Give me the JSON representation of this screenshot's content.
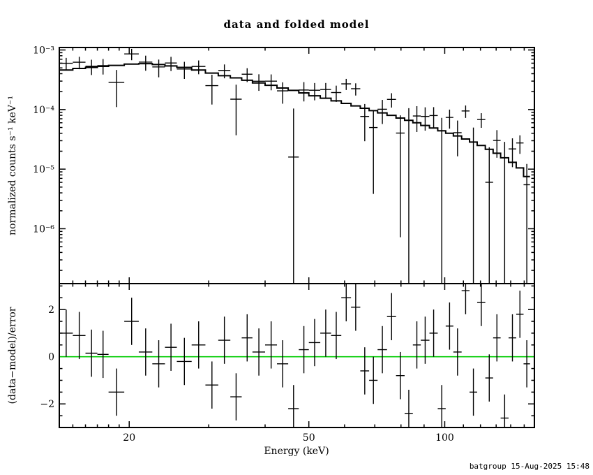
{
  "footer": "batgroup 15-Aug-2025 15:48",
  "colors": {
    "foreground": "#000000",
    "background": "#ffffff",
    "zero_line": "#00cc00",
    "footer_text": "#000080"
  },
  "chart_data": {
    "type": "line",
    "title": "data and folded model",
    "xlabel": "Energy (keV)",
    "ylabel_top": "normalized counts s⁻¹ keV⁻¹",
    "ylabel_bottom": "(data−model)/error",
    "x_scale": "log",
    "xlim": [
      14,
      158
    ],
    "xticks": [
      {
        "v": 20,
        "label": "20"
      },
      {
        "v": 50,
        "label": "50"
      },
      {
        "v": 100,
        "label": "100"
      }
    ],
    "top_panel": {
      "y_scale": "log",
      "ylim": [
        1.2e-07,
        0.0011
      ],
      "yticks": [
        {
          "v": 0.001,
          "label": "10⁻³"
        },
        {
          "v": 0.0001,
          "label": "10⁻⁴"
        },
        {
          "v": 1e-05,
          "label": "10⁻⁵"
        },
        {
          "v": 1e-06,
          "label": "10⁻⁶"
        }
      ]
    },
    "bottom_panel": {
      "y_scale": "linear",
      "ylim": [
        -3.0,
        3.1
      ],
      "yticks": [
        {
          "v": -2,
          "label": "−2"
        },
        {
          "v": 0,
          "label": "0"
        },
        {
          "v": 2,
          "label": "2"
        }
      ]
    },
    "bins_format": [
      "energy_keV",
      "half_width_keV",
      "model_counts",
      "residual_sigma",
      "relative_error"
    ],
    "bins": [
      [
        14.5,
        0.5,
        0.00046,
        1.0,
        0.3
      ],
      [
        15.5,
        0.5,
        0.00049,
        0.9,
        0.3
      ],
      [
        16.5,
        0.5,
        0.00051,
        0.15,
        0.3
      ],
      [
        17.5,
        0.5,
        0.00053,
        0.1,
        0.3
      ],
      [
        18.75,
        0.75,
        0.00055,
        -1.5,
        0.32
      ],
      [
        20.25,
        0.75,
        0.00058,
        1.5,
        0.32
      ],
      [
        21.75,
        0.75,
        0.00059,
        0.2,
        0.3
      ],
      [
        23.25,
        0.75,
        0.00057,
        -0.3,
        0.3
      ],
      [
        24.75,
        0.75,
        0.00054,
        0.4,
        0.3
      ],
      [
        26.5,
        1.0,
        0.00051,
        -0.2,
        0.3
      ],
      [
        28.5,
        1.0,
        0.00046,
        0.5,
        0.3
      ],
      [
        30.5,
        1.0,
        0.00041,
        -1.2,
        0.32
      ],
      [
        32.5,
        1.0,
        0.00037,
        0.7,
        0.32
      ],
      [
        34.5,
        1.0,
        0.00034,
        -1.7,
        0.33
      ],
      [
        36.5,
        1.0,
        0.00031,
        0.8,
        0.33
      ],
      [
        38.75,
        1.25,
        0.00028,
        0.2,
        0.33
      ],
      [
        41.25,
        1.25,
        0.000255,
        0.5,
        0.35
      ],
      [
        43.75,
        1.25,
        0.00023,
        -0.3,
        0.35
      ],
      [
        46.25,
        1.25,
        0.00021,
        -2.2,
        0.42
      ],
      [
        48.75,
        1.25,
        0.00019,
        0.3,
        0.4
      ],
      [
        51.5,
        1.5,
        0.00017,
        0.6,
        0.4
      ],
      [
        54.5,
        1.5,
        0.000155,
        1.0,
        0.4
      ],
      [
        57.5,
        1.5,
        0.00014,
        0.9,
        0.42
      ],
      [
        60.5,
        1.5,
        0.000127,
        2.5,
        0.45
      ],
      [
        63.5,
        1.5,
        0.000115,
        2.1,
        0.45
      ],
      [
        66.5,
        1.5,
        0.000105,
        -0.6,
        0.45
      ],
      [
        69.5,
        1.5,
        9.6e-05,
        -1.0,
        0.48
      ],
      [
        72.75,
        1.75,
        8.8e-05,
        0.3,
        0.5
      ],
      [
        76.25,
        1.75,
        8e-05,
        1.7,
        0.5
      ],
      [
        79.75,
        1.75,
        7.2e-05,
        -0.8,
        0.55
      ],
      [
        83.25,
        1.75,
        6.6e-05,
        -2.4,
        0.6
      ],
      [
        86.75,
        1.75,
        6e-05,
        0.5,
        0.6
      ],
      [
        90.5,
        2.0,
        5.4e-05,
        0.7,
        0.6
      ],
      [
        94.5,
        2.0,
        4.9e-05,
        1.0,
        0.62
      ],
      [
        98.5,
        2.0,
        4.4e-05,
        -2.2,
        0.65
      ],
      [
        102.5,
        2.0,
        4e-05,
        1.3,
        0.65
      ],
      [
        106.75,
        2.25,
        3.6e-05,
        0.2,
        0.68
      ],
      [
        111.25,
        2.25,
        3.2e-05,
        2.8,
        0.7
      ],
      [
        115.75,
        2.25,
        2.85e-05,
        -1.5,
        0.75
      ],
      [
        120.5,
        2.5,
        2.5e-05,
        2.3,
        0.75
      ],
      [
        125.5,
        2.5,
        2.15e-05,
        -0.9,
        0.8
      ],
      [
        130.5,
        2.5,
        1.85e-05,
        0.8,
        0.8
      ],
      [
        135.75,
        2.75,
        1.55e-05,
        -2.6,
        0.85
      ],
      [
        141.25,
        2.75,
        1.3e-05,
        0.8,
        0.85
      ],
      [
        146.75,
        2.75,
        1.05e-05,
        1.8,
        0.9
      ],
      [
        152.0,
        2.5,
        7.5e-06,
        -0.3,
        0.9
      ]
    ]
  }
}
